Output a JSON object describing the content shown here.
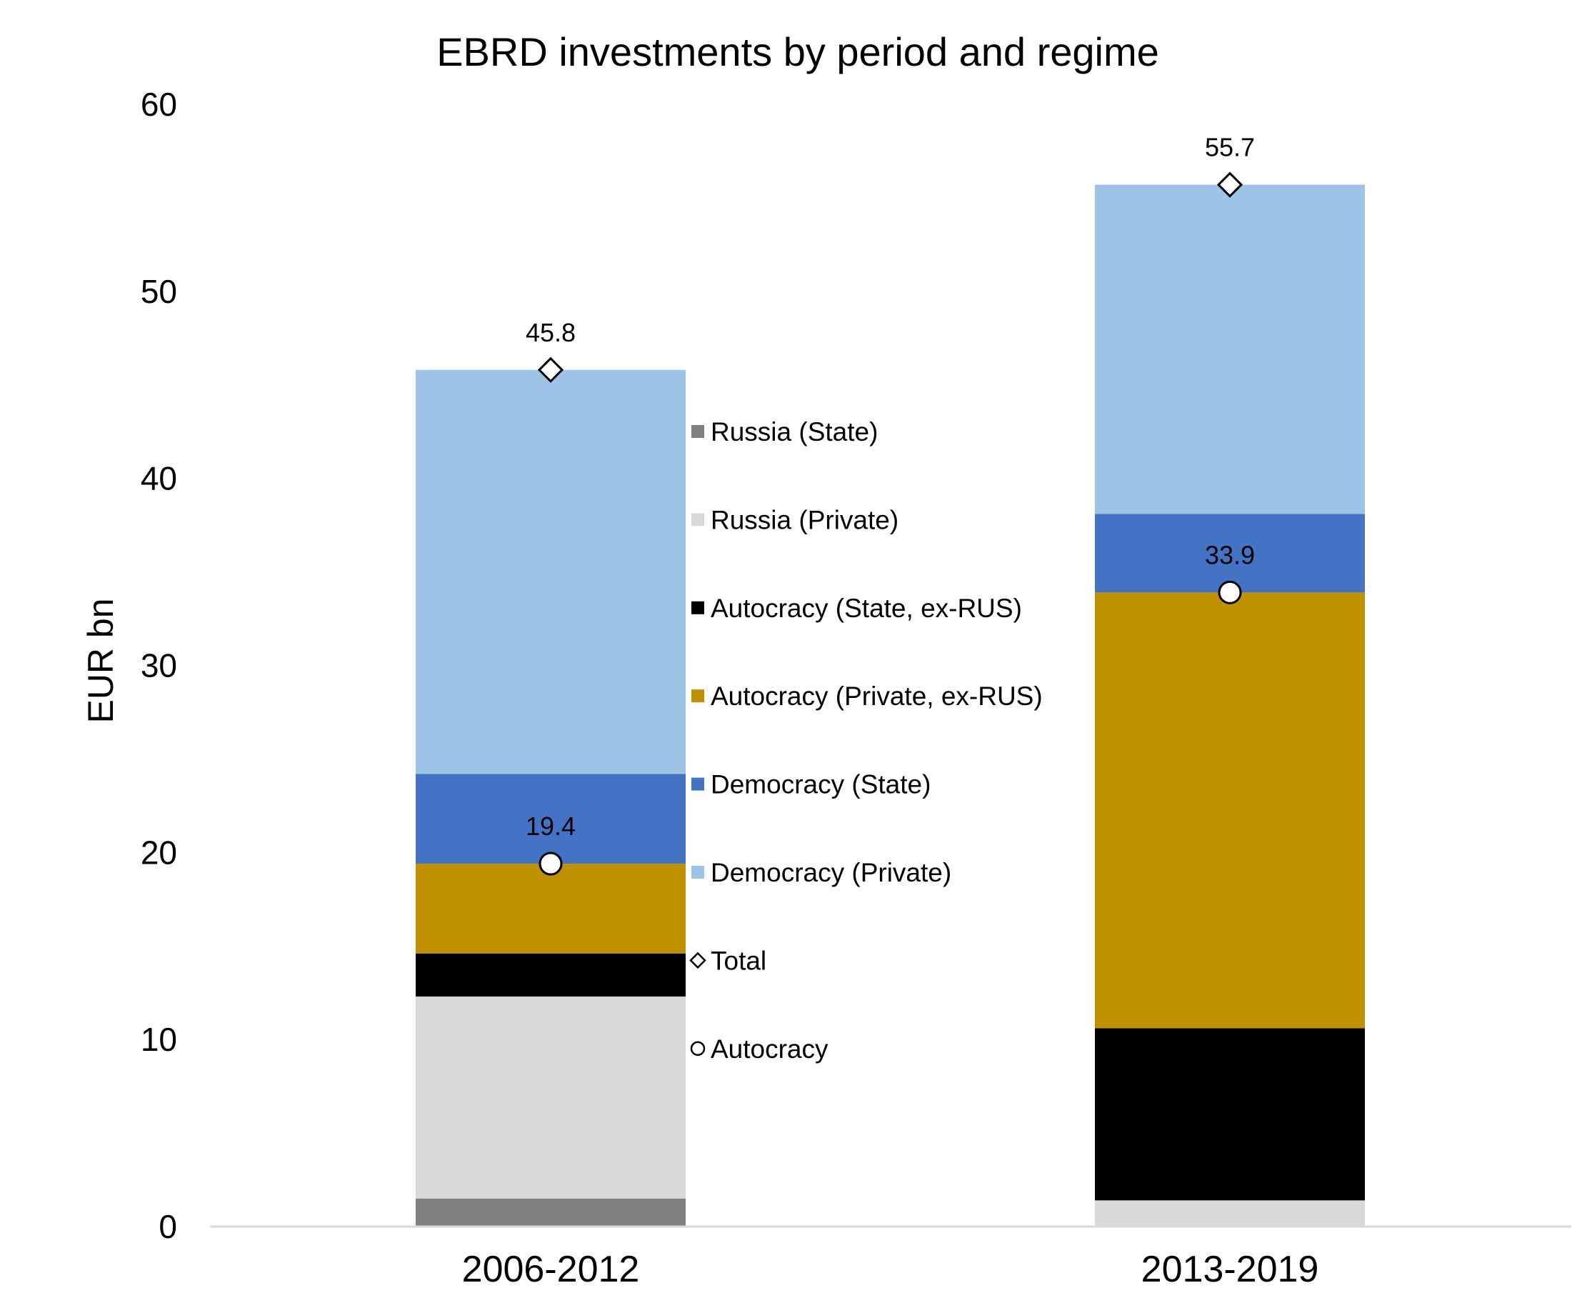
{
  "chart_data": {
    "type": "bar",
    "stacked": true,
    "title": "EBRD investments by period and regime",
    "ylabel": "EUR bn",
    "xlabel": "",
    "ylim": [
      0,
      60
    ],
    "yticks": [
      0,
      10,
      20,
      30,
      40,
      50,
      60
    ],
    "categories": [
      "2006-2012",
      "2013-2019"
    ],
    "series": [
      {
        "name": "Russia (State)",
        "color": "#808080",
        "values": [
          1.5,
          0.0
        ]
      },
      {
        "name": "Russia (Private)",
        "color": "#d9d9d9",
        "values": [
          10.8,
          1.4
        ]
      },
      {
        "name": "Autocracy (State, ex-RUS)",
        "color": "#000000",
        "values": [
          2.3,
          9.2
        ]
      },
      {
        "name": "Autocracy (Private, ex-RUS)",
        "color": "#bf9000",
        "values": [
          4.8,
          23.3
        ]
      },
      {
        "name": "Democracy (State)",
        "color": "#4472c4",
        "values": [
          4.8,
          4.2
        ]
      },
      {
        "name": "Democracy (Private)",
        "color": "#9dc3e6",
        "values": [
          21.6,
          17.6
        ]
      }
    ],
    "markers": [
      {
        "name": "Total",
        "shape": "diamond",
        "values": [
          45.8,
          55.7
        ],
        "labels": [
          "45.8",
          "55.7"
        ]
      },
      {
        "name": "Autocracy",
        "shape": "circle",
        "values": [
          19.4,
          33.9
        ],
        "labels": [
          "19.4",
          "33.9"
        ]
      }
    ],
    "legend": {
      "placement": "between-bars",
      "items": [
        {
          "label": "Russia (State)",
          "symbol": "square",
          "color": "#808080"
        },
        {
          "label": "Russia (Private)",
          "symbol": "square",
          "color": "#d9d9d9"
        },
        {
          "label": "Autocracy (State, ex-RUS)",
          "symbol": "square",
          "color": "#000000"
        },
        {
          "label": "Autocracy (Private, ex-RUS)",
          "symbol": "square",
          "color": "#bf9000"
        },
        {
          "label": "Democracy (State)",
          "symbol": "square",
          "color": "#4472c4"
        },
        {
          "label": "Democracy (Private)",
          "symbol": "square",
          "color": "#9dc3e6"
        },
        {
          "label": "Total",
          "symbol": "diamond",
          "color": "#ffffff"
        },
        {
          "label": "Autocracy",
          "symbol": "circle",
          "color": "#ffffff"
        }
      ]
    },
    "grid": false
  }
}
